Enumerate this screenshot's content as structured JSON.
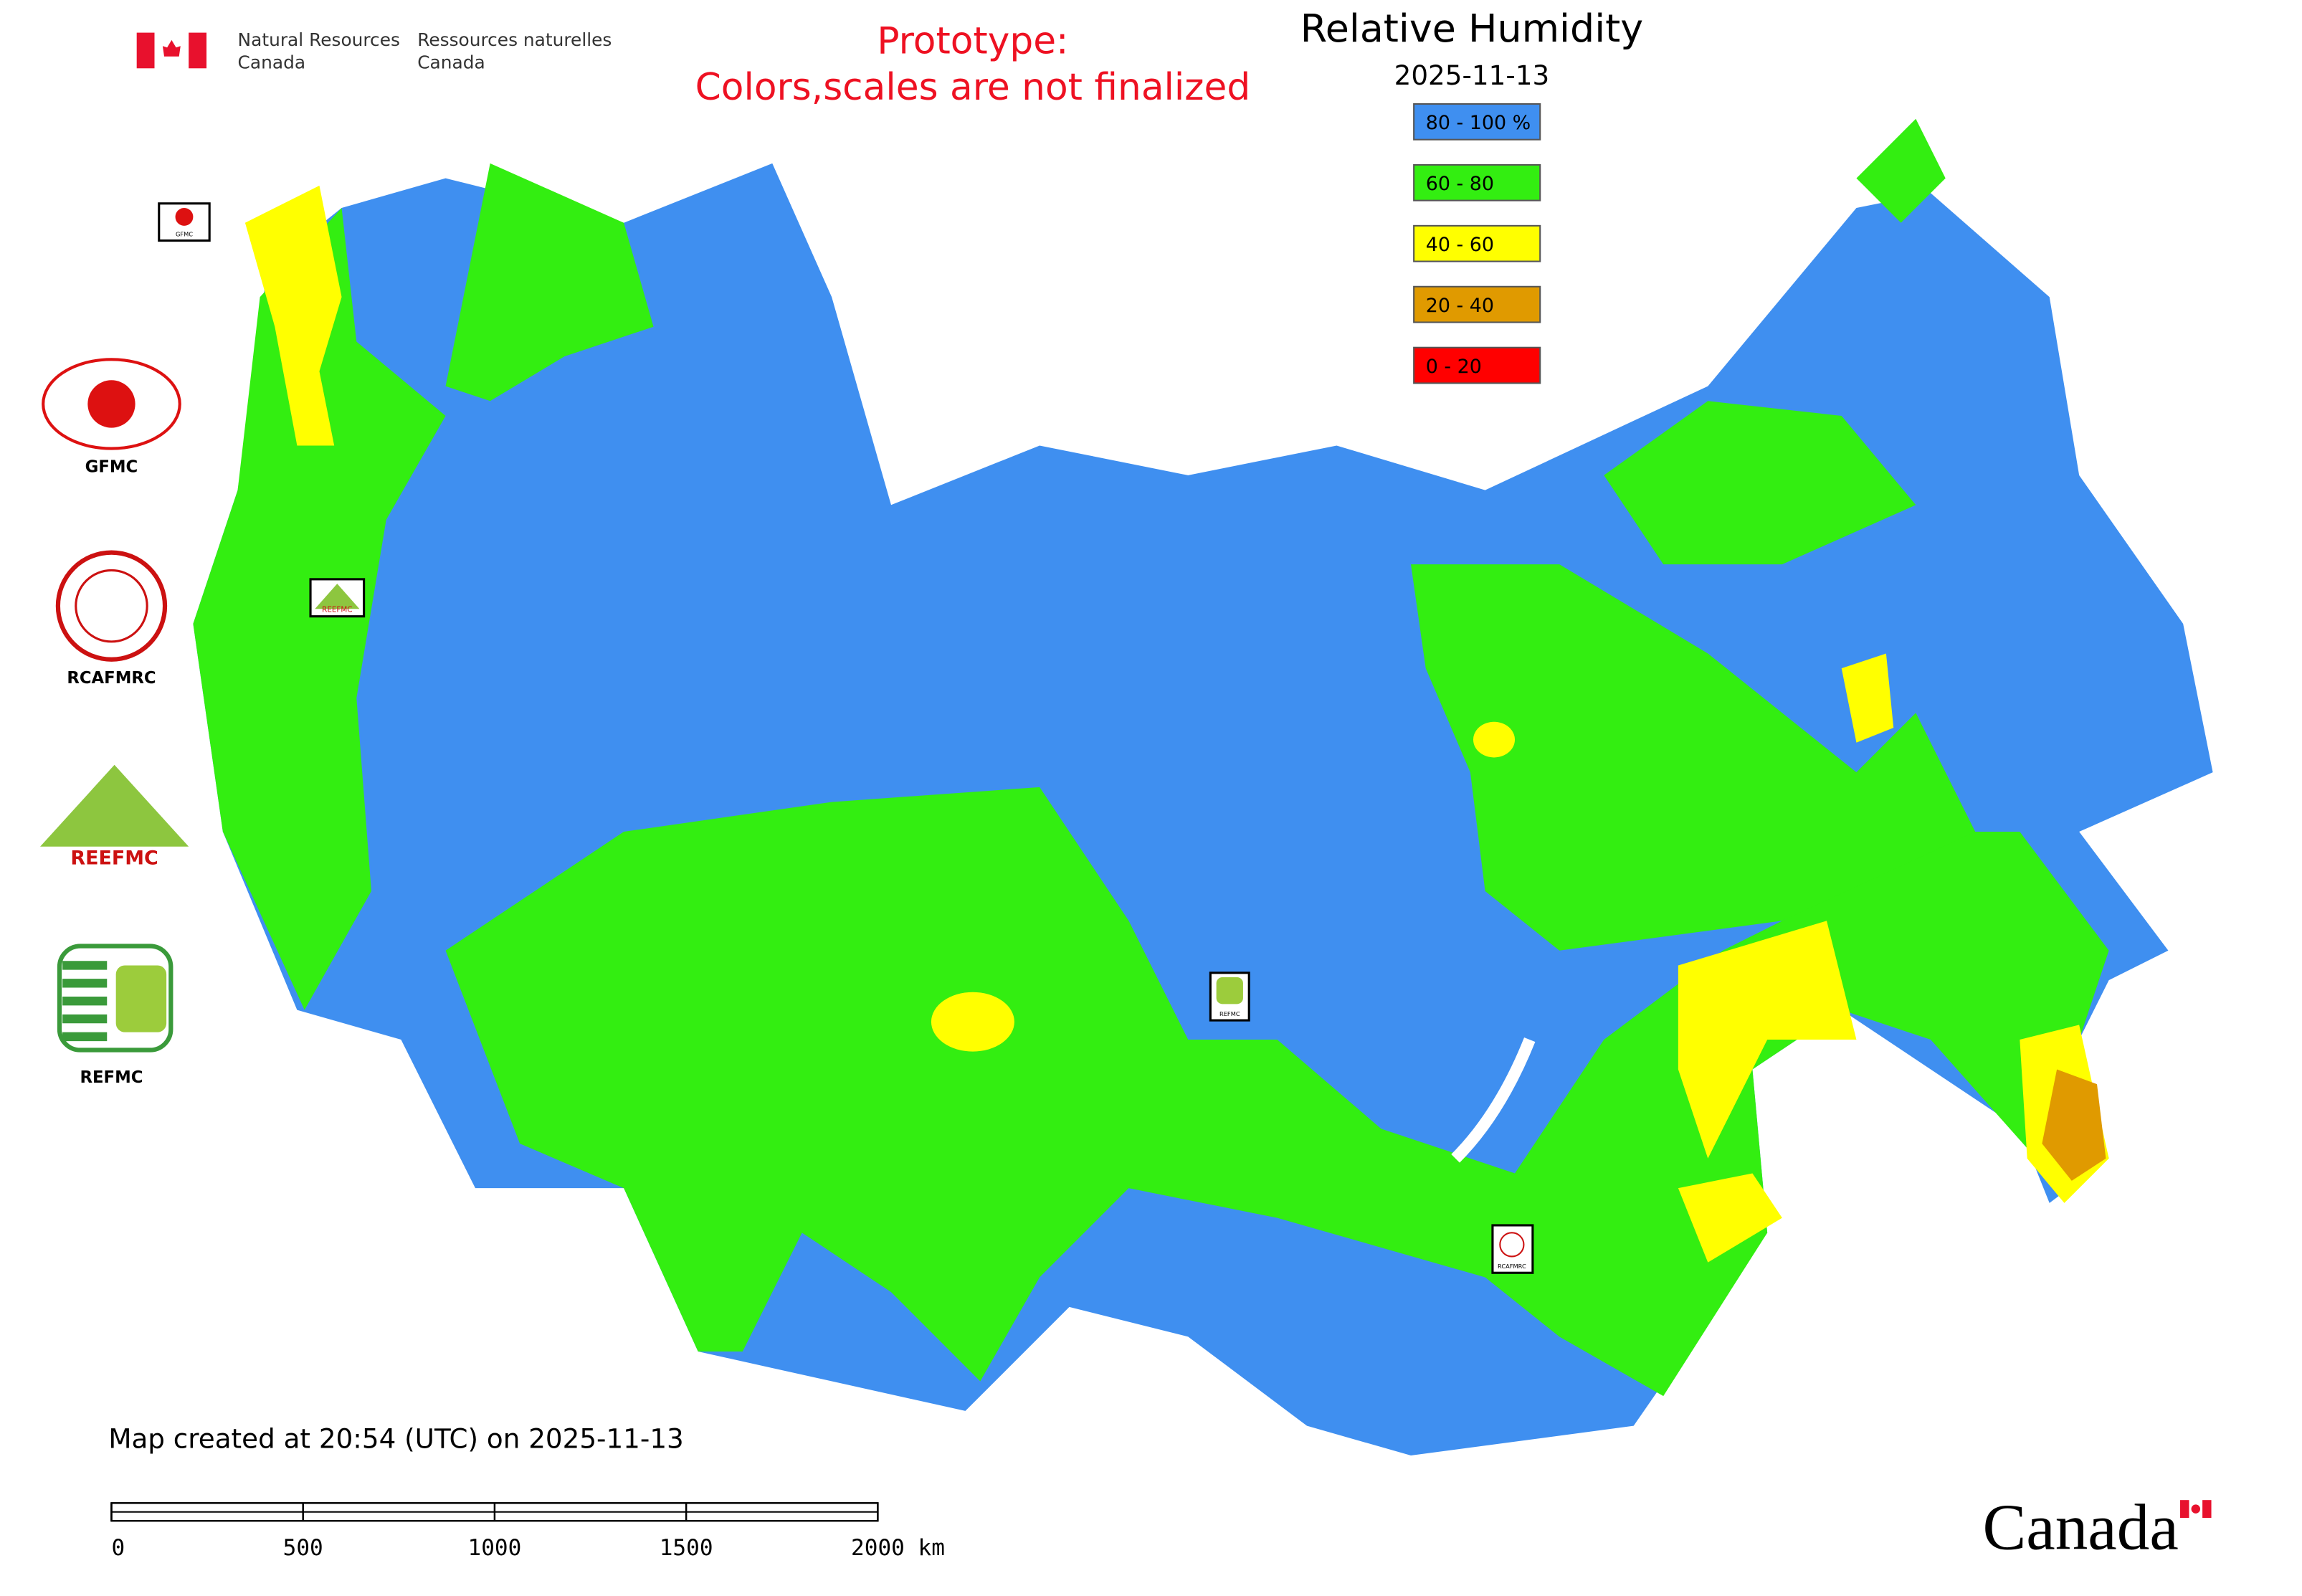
{
  "header": {
    "department": [
      "Natural Resources",
      "Canada"
    ],
    "department_fr": [
      "Ressources naturelles",
      "Canada"
    ],
    "notice": [
      "Prototype:",
      "Colors,scales are not finalized"
    ]
  },
  "legend": {
    "title": "Relative Humidity",
    "date": "2025-11-13",
    "items": [
      {
        "label": "80 - 100 %",
        "color": "#3f8ff0"
      },
      {
        "label": "60 - 80",
        "color": "#33ee11"
      },
      {
        "label": "40 - 60",
        "color": "#ffff00"
      },
      {
        "label": "20 - 40",
        "color": "#e09a00"
      },
      {
        "label": "0 - 20",
        "color": "#ff0000"
      }
    ]
  },
  "logos": [
    "GFMC",
    "RCAFMRC",
    "REEFMC",
    "REFMC"
  ],
  "footer": {
    "created": "Map created at 20:54 (UTC) on 2025-11-13",
    "wordmark": "Canada"
  },
  "scale_bar": {
    "labels": [
      "0",
      "500",
      "1000",
      "1500",
      "2000 km"
    ]
  }
}
